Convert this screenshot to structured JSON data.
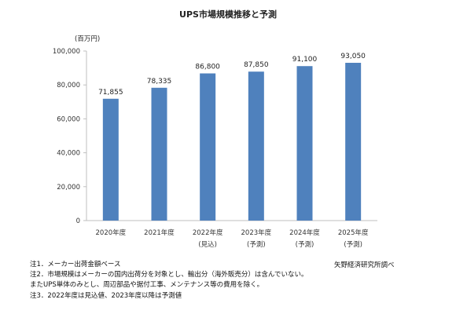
{
  "chart_data": {
    "type": "bar",
    "title": "UPS市場規模推移と予測",
    "unit_label": "(百万円)",
    "categories": [
      "2020年度",
      "2021年度",
      "2022年度",
      "2023年度",
      "2024年度",
      "2025年度"
    ],
    "category_notes": [
      "",
      "",
      "(見込)",
      "(予測)",
      "(予測)",
      "(予測)"
    ],
    "values": [
      71855,
      78335,
      86800,
      87850,
      91100,
      93050
    ],
    "data_labels": [
      "71,855",
      "78,335",
      "86,800",
      "87,850",
      "91,100",
      "93,050"
    ],
    "ylim": [
      0,
      100000
    ],
    "yticks": [
      0,
      20000,
      40000,
      60000,
      80000,
      100000
    ],
    "ytick_labels": [
      "0",
      "20,000",
      "40,000",
      "60,000",
      "80,000",
      "100,000"
    ],
    "grid": false,
    "legend": "none",
    "bar_color": "#4f81bd"
  },
  "footnotes": [
    "注1．メーカー出荷金額ベース",
    "注2．市場規模はメーカーの国内出荷分を対象とし、輸出分（海外販売分）は含んでいない。",
    "またUPS単体のみとし、周辺部品や据付工事、メンテナンス等の費用を除く。",
    "注3．2022年度は見込値、2023年度以降は予測値"
  ],
  "source": "矢野経済研究所調べ"
}
